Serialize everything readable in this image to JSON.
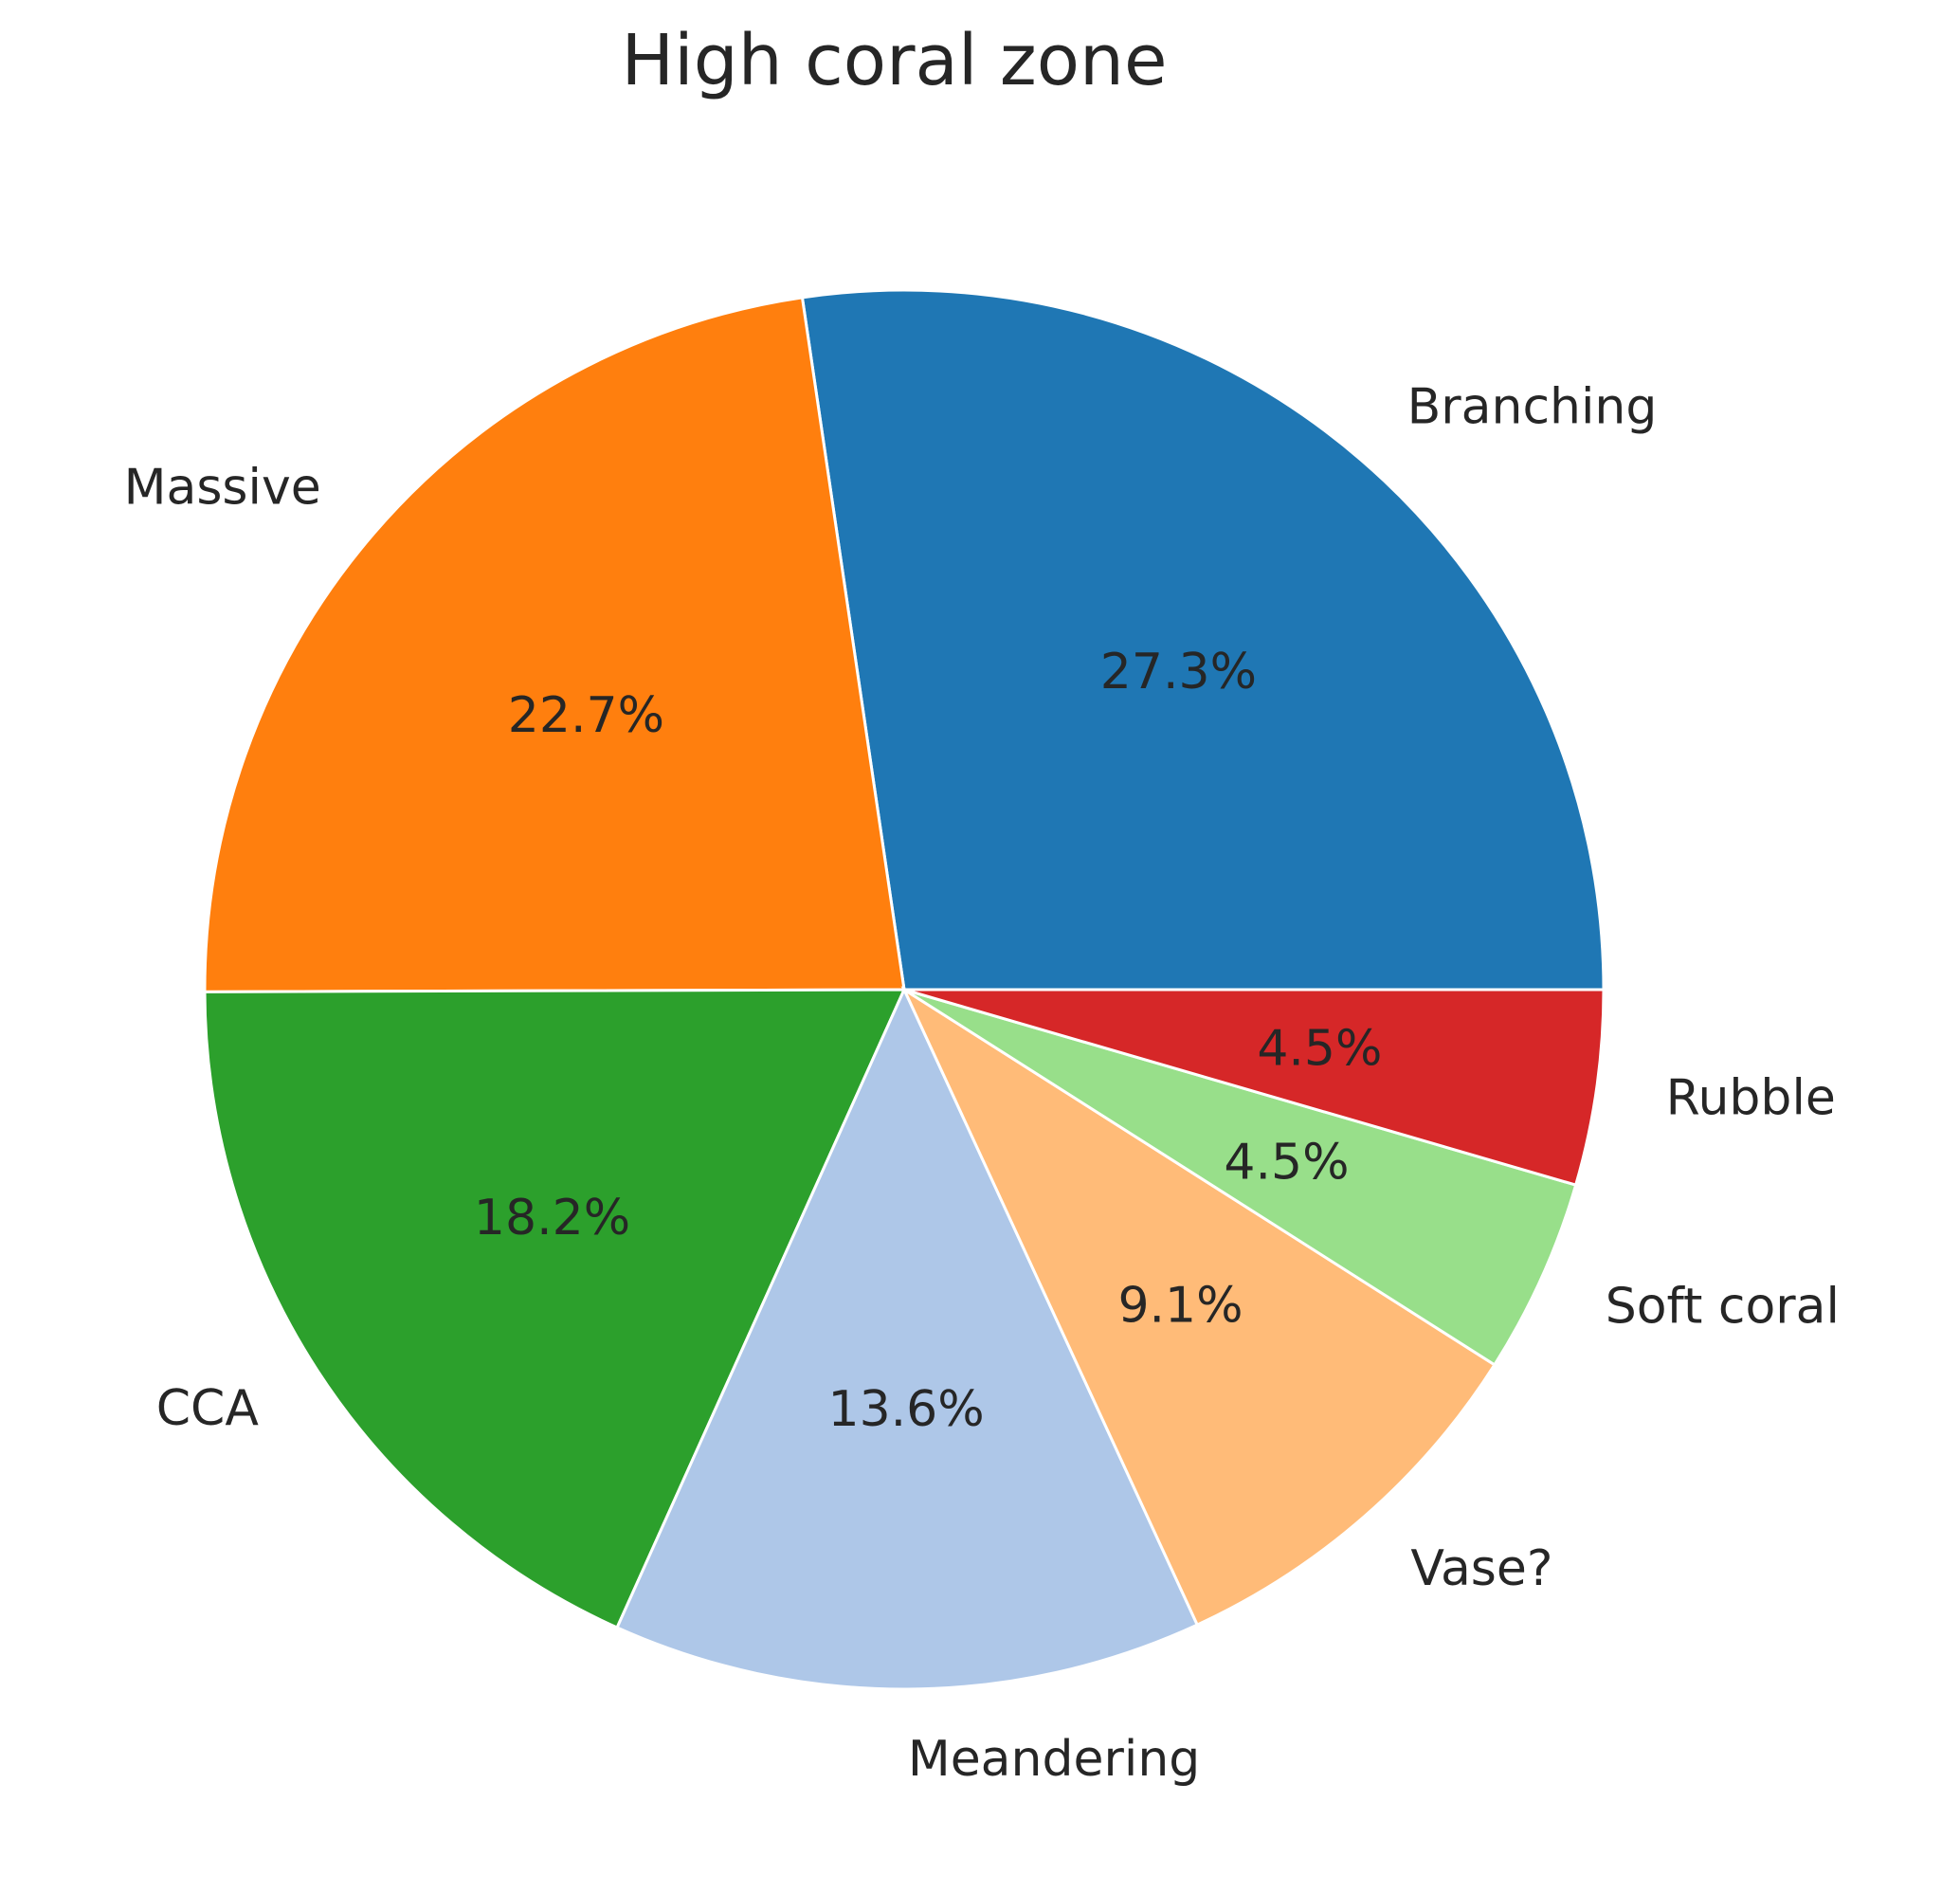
{
  "chart_data": {
    "type": "pie",
    "title": "High coral zone",
    "slices": [
      {
        "label": "Branching",
        "value": 27.3,
        "pct_label": "27.3%",
        "color": "#1f77b4"
      },
      {
        "label": "Massive",
        "value": 22.7,
        "pct_label": "22.7%",
        "color": "#ff7f0e"
      },
      {
        "label": "CCA",
        "value": 18.2,
        "pct_label": "18.2%",
        "color": "#2ca02c"
      },
      {
        "label": "Meandering",
        "value": 13.6,
        "pct_label": "13.6%",
        "color": "#aec7e8"
      },
      {
        "label": "Vase?",
        "value": 9.1,
        "pct_label": "9.1%",
        "color": "#ffbb78"
      },
      {
        "label": "Soft coral",
        "value": 4.5,
        "pct_label": "4.5%",
        "color": "#98df8a"
      },
      {
        "label": "Rubble",
        "value": 4.5,
        "pct_label": "4.5%",
        "color": "#d62728"
      }
    ],
    "start_angle_deg": 0,
    "direction": "counterclockwise"
  }
}
